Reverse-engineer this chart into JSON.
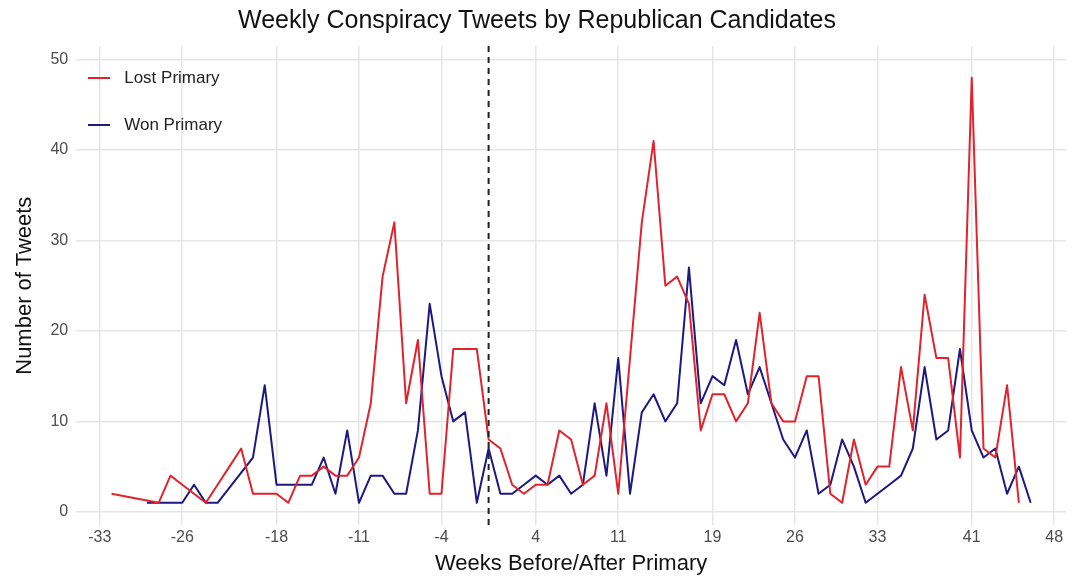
{
  "chart_data": {
    "type": "line",
    "title": "Weekly Conspiracy Tweets by Republican Candidates",
    "xlabel": "Weeks Before/After Primary",
    "ylabel": "Number of Tweets",
    "series": [
      {
        "name": "Lost Primary",
        "color": "#e0232d",
        "x": [
          -32,
          -28,
          -27,
          -26,
          -25,
          -24,
          -23,
          -22,
          -21,
          -20,
          -19,
          -18,
          -17,
          -16,
          -15,
          -14,
          -13,
          -12,
          -11,
          -10,
          -9,
          -8,
          -7,
          -6,
          -5,
          -4,
          -3,
          -2,
          -1,
          0,
          1,
          2,
          3,
          4,
          5,
          6,
          7,
          8,
          9,
          10,
          11,
          13,
          14,
          15,
          16,
          17,
          18,
          19,
          20,
          21,
          22,
          23,
          24,
          25,
          26,
          27,
          28,
          29,
          30,
          31,
          32,
          33,
          34,
          35,
          36,
          37,
          38,
          39,
          40,
          41,
          42,
          43,
          44,
          45
        ],
        "values": [
          2,
          1,
          4,
          3,
          2,
          1,
          3,
          5,
          7,
          2,
          2,
          2,
          1,
          4,
          4,
          5,
          4,
          4,
          6,
          12,
          26,
          32,
          12,
          19,
          2,
          2,
          18,
          18,
          18,
          8,
          7,
          3,
          2,
          3,
          3,
          9,
          8,
          3,
          4,
          12,
          2,
          32,
          41,
          25,
          26,
          23,
          9,
          13,
          13,
          10,
          12,
          22,
          12,
          10,
          10,
          15,
          15,
          2,
          1,
          8,
          3,
          5,
          5,
          16,
          9,
          24,
          17,
          17,
          6,
          48,
          7,
          6,
          14,
          1
        ]
      },
      {
        "name": "Won Primary",
        "color": "#1c1a80",
        "x": [
          -29,
          -28,
          -27,
          -26,
          -25,
          -24,
          -23,
          -20,
          -19,
          -18,
          -17,
          -16,
          -15,
          -14,
          -13,
          -12,
          -11,
          -10,
          -9,
          -8,
          -7,
          -6,
          -5,
          -4,
          -3,
          -2,
          -1,
          0,
          1,
          2,
          3,
          4,
          5,
          6,
          7,
          8,
          9,
          10,
          11,
          12,
          13,
          14,
          15,
          16,
          17,
          18,
          19,
          20,
          21,
          22,
          23,
          24,
          25,
          26,
          27,
          28,
          29,
          30,
          31,
          32,
          33,
          34,
          35,
          36,
          37,
          38,
          39,
          40,
          41,
          42,
          43,
          44,
          45,
          46
        ],
        "values": [
          1,
          1,
          1,
          1,
          3,
          1,
          1,
          6,
          14,
          3,
          3,
          3,
          3,
          6,
          2,
          9,
          1,
          4,
          4,
          2,
          2,
          9,
          23,
          15,
          10,
          11,
          1,
          7,
          2,
          2,
          3,
          4,
          3,
          4,
          2,
          3,
          12,
          4,
          17,
          2,
          11,
          13,
          10,
          12,
          27,
          12,
          15,
          14,
          19,
          13,
          16,
          12,
          8,
          6,
          9,
          2,
          3,
          8,
          5,
          1,
          2,
          3,
          4,
          7,
          16,
          8,
          9,
          18,
          9,
          6,
          7,
          2,
          5,
          1
        ]
      }
    ],
    "xlim": [
      -35,
      49
    ],
    "xticks": [
      -33,
      -26,
      -18,
      -11,
      -4,
      4,
      11,
      19,
      26,
      33,
      41,
      48
    ],
    "ylim": [
      -1.5,
      51.5
    ],
    "yticks": [
      0,
      10,
      20,
      30,
      40,
      50
    ],
    "ref_lines": [
      {
        "axis": "x",
        "value": 0,
        "color": "#222222",
        "line_style": "dashed"
      }
    ],
    "grid": true,
    "legend": "top left",
    "marker": "none",
    "line_style": "solid"
  }
}
